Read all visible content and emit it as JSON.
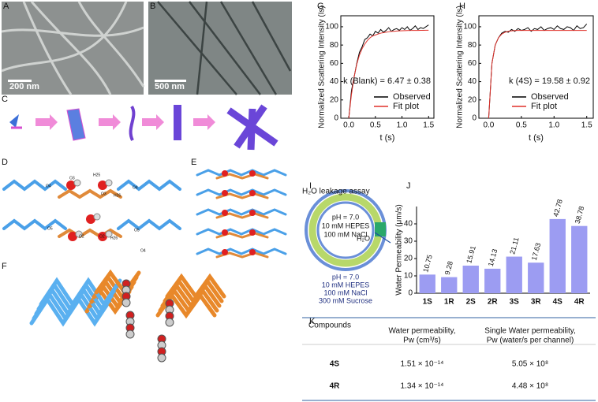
{
  "panel_labels": [
    "A",
    "B",
    "C",
    "D",
    "E",
    "F",
    "G",
    "H",
    "I",
    "J",
    "K"
  ],
  "panel_a": {
    "scale_bar": "200 nm"
  },
  "panel_b": {
    "scale_bar": "500 nm"
  },
  "panel_d": {
    "atom_labels": [
      "O4",
      "O3",
      "H25",
      "O3",
      "H26",
      "O4",
      "O5",
      "O2",
      "O2",
      "H26",
      "O5",
      "O4"
    ]
  },
  "panel_i": {
    "title": "H₂O leakage assay",
    "inside": [
      "pH = 7.0",
      "10 mM HEPES",
      "100 mM NaCl"
    ],
    "water": "H₂O",
    "outside": [
      "pH = 7.0",
      "10 mM HEPES",
      "100 mM NaCl",
      "300 mM Sucrose"
    ]
  },
  "chart_data": [
    {
      "type": "line",
      "ylabel": "Normalized Scattering Intensity (Is)",
      "xlabel": "t (s)",
      "annotation": "k (Blank) = 6.47 ± 0.38",
      "xlim": [
        -0.15,
        1.6
      ],
      "ylim": [
        0,
        112
      ],
      "xticks": [
        {
          "value": 0,
          "label": "0.0"
        },
        {
          "value": 0.5,
          "label": "0.5"
        },
        {
          "value": 1,
          "label": "1.0"
        },
        {
          "value": 1.5,
          "label": "1.5"
        }
      ],
      "yticks": [
        0,
        20,
        40,
        60,
        80,
        100
      ],
      "x": [
        0,
        0.05,
        0.1,
        0.15,
        0.2,
        0.25,
        0.3,
        0.35,
        0.4,
        0.45,
        0.5,
        0.55,
        0.6,
        0.65,
        0.7,
        0.75,
        0.8,
        0.85,
        0.9,
        0.95,
        1,
        1.05,
        1.1,
        1.15,
        1.2,
        1.25,
        1.3,
        1.35,
        1.4,
        1.45,
        1.5
      ],
      "series": [
        {
          "name": "Observed",
          "color": "#000000",
          "values": [
            0,
            30,
            45,
            60,
            72,
            78,
            86,
            88,
            92,
            90,
            95,
            93,
            97,
            94,
            96,
            99,
            95,
            97,
            98,
            96,
            99,
            97,
            100,
            96,
            98,
            101,
            97,
            99,
            98,
            100,
            102
          ]
        },
        {
          "name": "Fit plot",
          "color": "#e0302a",
          "values": [
            0,
            26,
            45,
            59,
            69,
            76,
            81,
            85,
            88,
            90,
            91,
            92,
            93,
            93.5,
            94,
            94.5,
            95,
            95,
            95.3,
            95.5,
            95.6,
            95.7,
            95.8,
            95.9,
            96,
            96,
            96,
            96.1,
            96.1,
            96.2,
            96.2
          ]
        }
      ]
    },
    {
      "type": "line",
      "ylabel": "Normalized Scattering Intensity (Is)",
      "xlabel": "t (s)",
      "annotation": "k (4S) = 19.58 ± 0.92",
      "xlim": [
        -0.15,
        1.6
      ],
      "ylim": [
        0,
        112
      ],
      "xticks": [
        {
          "value": 0,
          "label": "0.0"
        },
        {
          "value": 0.5,
          "label": "0.5"
        },
        {
          "value": 1,
          "label": "1.0"
        },
        {
          "value": 1.5,
          "label": "1.5"
        }
      ],
      "yticks": [
        0,
        20,
        40,
        60,
        80,
        100
      ],
      "x": [
        0,
        0.05,
        0.1,
        0.15,
        0.2,
        0.25,
        0.3,
        0.35,
        0.4,
        0.45,
        0.5,
        0.55,
        0.6,
        0.65,
        0.7,
        0.75,
        0.8,
        0.85,
        0.9,
        0.95,
        1,
        1.05,
        1.1,
        1.15,
        1.2,
        1.25,
        1.3,
        1.35,
        1.4,
        1.45,
        1.5
      ],
      "series": [
        {
          "name": "Observed",
          "color": "#000000",
          "values": [
            0,
            60,
            80,
            88,
            93,
            95,
            94,
            97,
            95,
            98,
            96,
            97,
            99,
            95,
            98,
            97,
            100,
            96,
            98,
            99,
            97,
            101,
            98,
            97,
            100,
            99,
            96,
            101,
            98,
            99,
            103
          ]
        },
        {
          "name": "Fit plot",
          "color": "#e0302a",
          "values": [
            0,
            60,
            80,
            88,
            92,
            94,
            95,
            95.5,
            95.8,
            96,
            96,
            96,
            96,
            96,
            96,
            96,
            96,
            96,
            96,
            96,
            96,
            96,
            96,
            96,
            96,
            96,
            96,
            96,
            96,
            96,
            96
          ]
        }
      ]
    },
    {
      "type": "bar",
      "ylabel": "Water Permeability (μm/s)",
      "color": "#9c9cf2",
      "categories": [
        "1S",
        "1R",
        "2S",
        "2R",
        "3S",
        "3R",
        "4S",
        "4R"
      ],
      "values": [
        10.75,
        9.28,
        15.91,
        14.13,
        21.11,
        17.63,
        42.78,
        38.78
      ],
      "ylim": [
        0,
        50
      ],
      "yticks": [
        0,
        10,
        20,
        30,
        40
      ]
    }
  ],
  "table": {
    "header": [
      "Compounds",
      "Water permeability,",
      "Pw (cm³/s)",
      "Single Water permeability,",
      "Pw (water/s per channel)"
    ],
    "rows": [
      [
        "4S",
        "1.51 × 10⁻¹⁴",
        "5.05 × 10⁸"
      ],
      [
        "4R",
        "1.34 × 10⁻¹⁴",
        "4.48 × 10⁸"
      ]
    ]
  }
}
